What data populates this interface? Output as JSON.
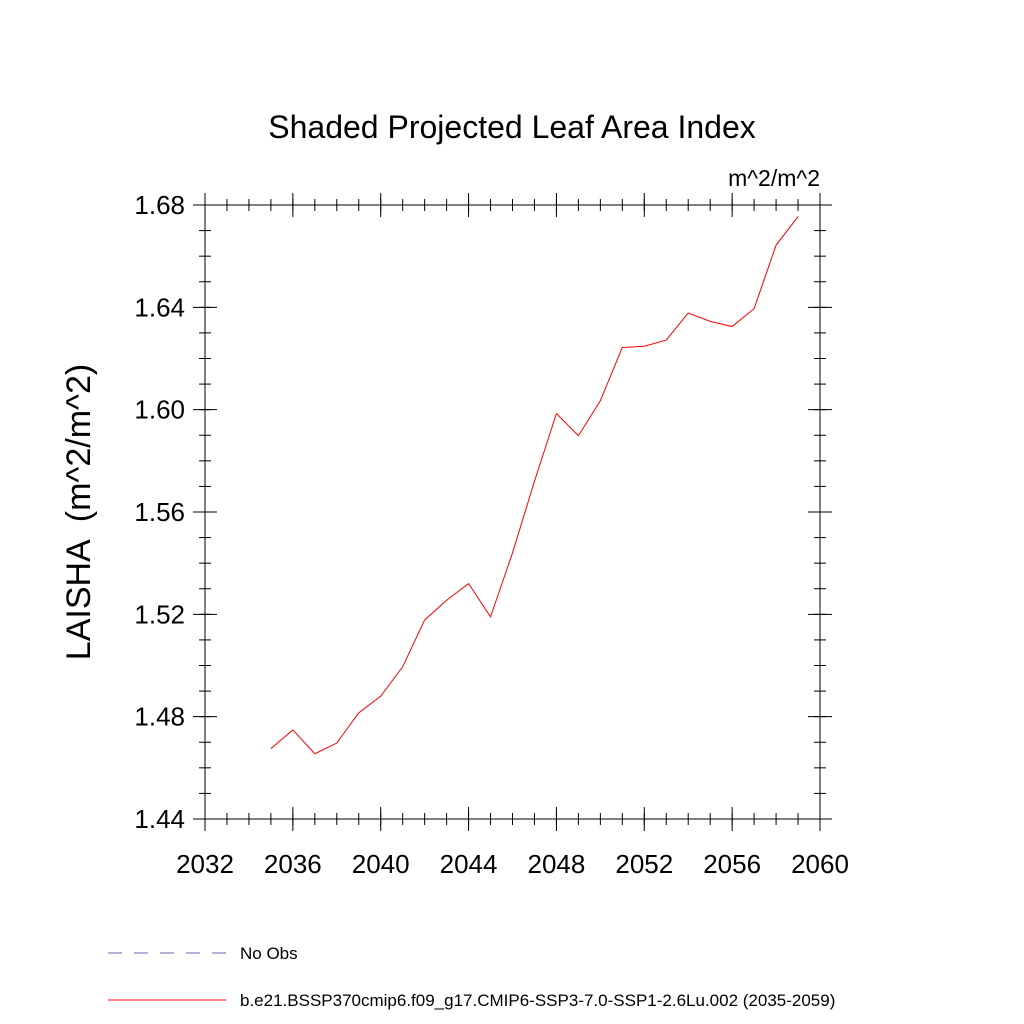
{
  "chart_data": {
    "type": "line",
    "title": "Shaded Projected Leaf Area Index",
    "units_label": "m^2/m^2",
    "ylabel": "LAISHA  (m^2/m^2)",
    "xlabel": "",
    "xlim": [
      2032,
      2060
    ],
    "ylim": [
      1.44,
      1.68
    ],
    "x_major_ticks": [
      2032,
      2036,
      2040,
      2044,
      2048,
      2052,
      2056,
      2060
    ],
    "x_tick_labels": [
      "2032",
      "2036",
      "2040",
      "2044",
      "2048",
      "2052",
      "2056",
      "2060"
    ],
    "x_minor_step": 1,
    "y_major_ticks": [
      1.44,
      1.48,
      1.52,
      1.56,
      1.6,
      1.64,
      1.68
    ],
    "y_tick_labels": [
      "1.44",
      "1.48",
      "1.52",
      "1.56",
      "1.60",
      "1.64",
      "1.68"
    ],
    "y_minor_step": 0.01,
    "grid": false,
    "series": [
      {
        "name": "b.e21.BSSP370cmip6.f09_g17.CMIP6-SSP3-7.0-SSP1-2.6Lu.002 (2035-2059)",
        "color": "#ff0000",
        "style": "solid",
        "x": [
          2035,
          2036,
          2037,
          2038,
          2039,
          2040,
          2041,
          2042,
          2043,
          2044,
          2045,
          2046,
          2047,
          2048,
          2049,
          2050,
          2051,
          2052,
          2053,
          2054,
          2055,
          2056,
          2057,
          2058,
          2059
        ],
        "values": [
          1.4675,
          1.4748,
          1.4655,
          1.4697,
          1.4815,
          1.488,
          1.4995,
          1.5178,
          1.5255,
          1.532,
          1.519,
          1.544,
          1.572,
          1.5985,
          1.5898,
          1.6035,
          1.6243,
          1.6248,
          1.6272,
          1.6378,
          1.6345,
          1.6325,
          1.6395,
          1.6643,
          1.6755
        ]
      }
    ],
    "legend": [
      {
        "label": "No Obs",
        "color": "#7060a8",
        "style": "dashed"
      },
      {
        "label": "b.e21.BSSP370cmip6.f09_g17.CMIP6-SSP3-7.0-SSP1-2.6Lu.002 (2035-2059)",
        "color": "#ff0000",
        "style": "solid"
      }
    ],
    "legend_position": "bottom-left"
  }
}
